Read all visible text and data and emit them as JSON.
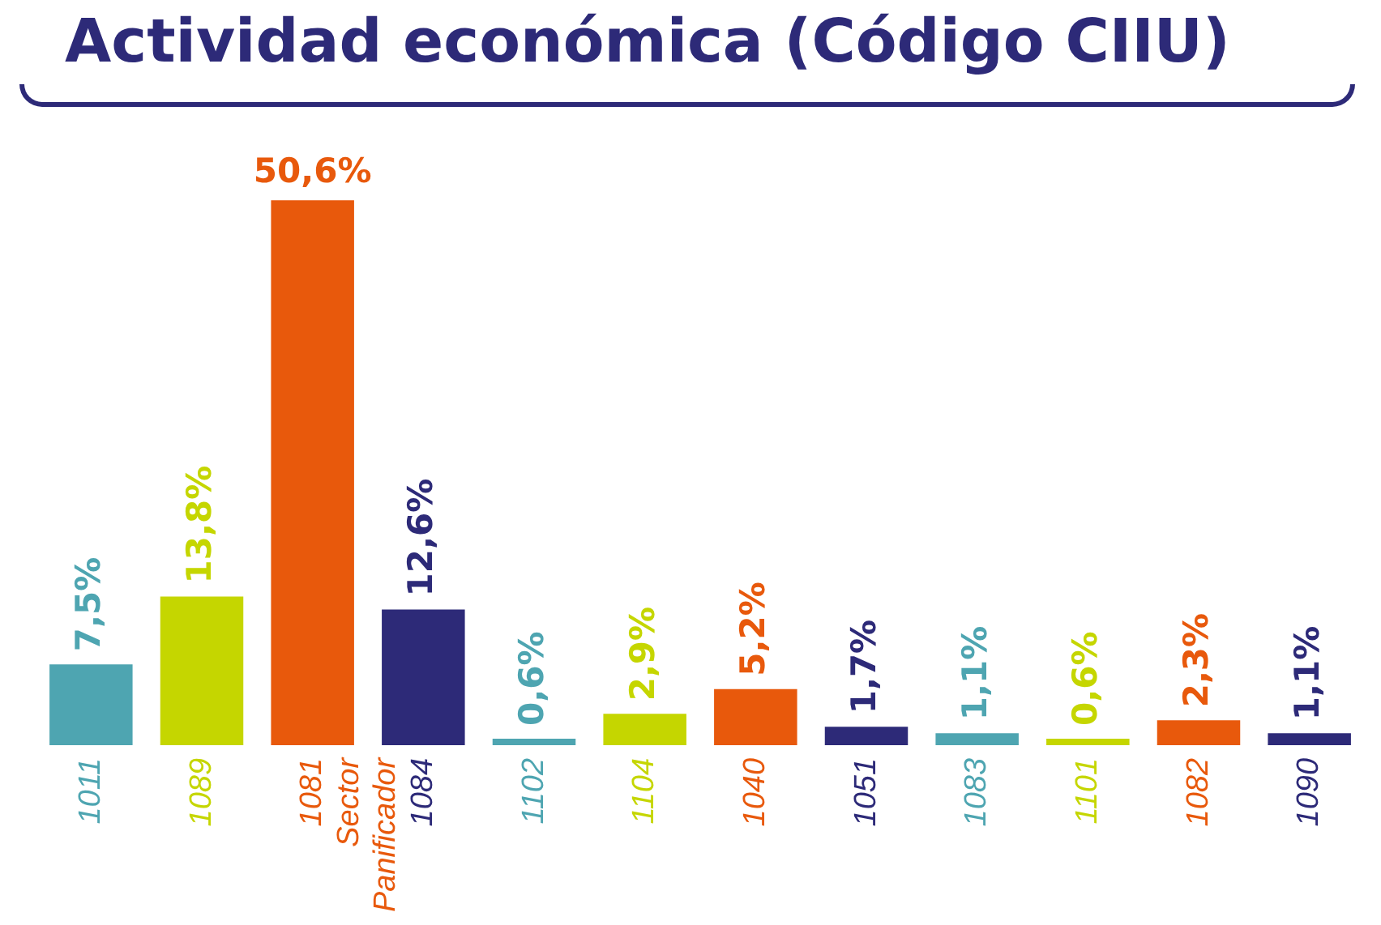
{
  "chart_data": {
    "type": "bar",
    "title": "Actividad económica (Código CIIU)",
    "categories": [
      "1011",
      "1089",
      "1081\nSector\nPanificador",
      "1084",
      "1102",
      "1104",
      "1040",
      "1051",
      "1083",
      "1101",
      "1082",
      "1090"
    ],
    "values": [
      7.5,
      13.8,
      50.6,
      12.6,
      0.6,
      2.9,
      5.2,
      1.7,
      1.1,
      0.6,
      2.3,
      1.1
    ],
    "value_labels": [
      "7,5%",
      "13,8%",
      "50,6%",
      "12,6%",
      "0,6%",
      "2,9%",
      "5,2%",
      "1,7%",
      "1,1%",
      "0,6%",
      "2,3%",
      "1,1%"
    ],
    "colors": [
      "#4ea5b1",
      "#c5d600",
      "#e8590c",
      "#2d2a78",
      "#4ea5b1",
      "#c5d600",
      "#e8590c",
      "#2d2a78",
      "#4ea5b1",
      "#c5d600",
      "#e8590c",
      "#2d2a78"
    ],
    "grid": false,
    "legend": false
  }
}
